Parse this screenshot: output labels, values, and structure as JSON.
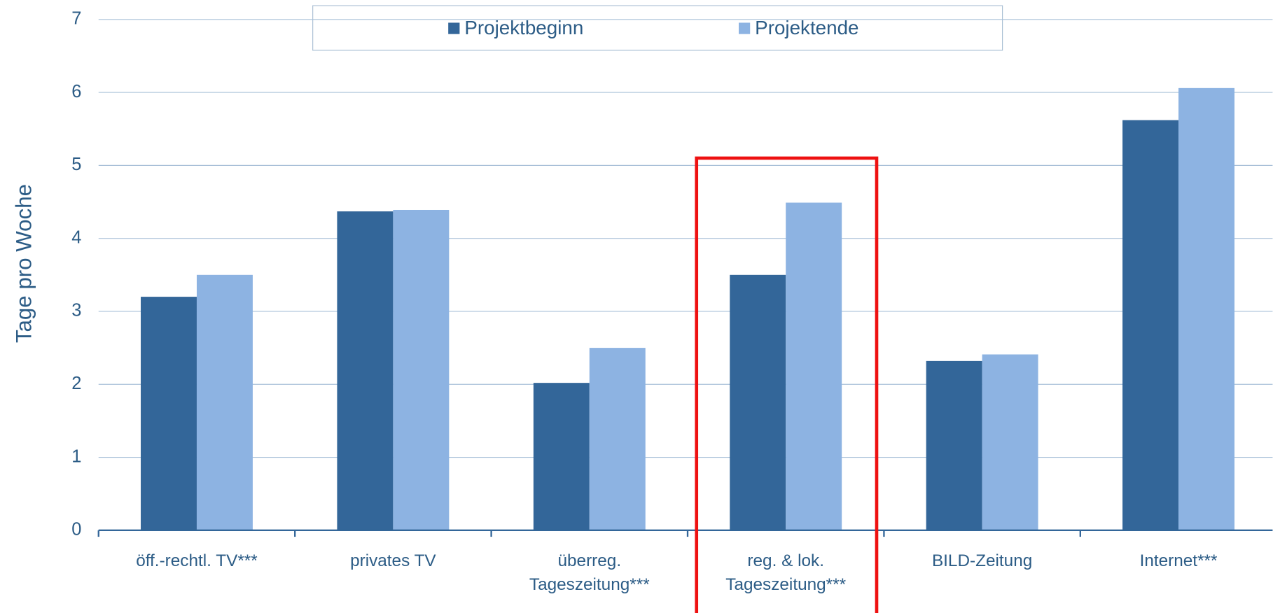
{
  "chart_data": {
    "type": "bar",
    "y_label": "Tage pro Woche",
    "categories": [
      "öff.-rechtl. TV***",
      "privates TV",
      "überreg.\nTageszeitung***",
      "reg. & lok.\nTageszeitung***",
      "BILD-Zeitung",
      "Internet***"
    ],
    "series": [
      {
        "name": "Projektbeginn",
        "color": "#336699",
        "values": [
          3.2,
          4.37,
          2.02,
          3.5,
          2.32,
          5.62
        ]
      },
      {
        "name": "Projektende",
        "color": "#8db3e2",
        "values": [
          3.5,
          4.39,
          2.5,
          4.49,
          2.41,
          6.06
        ]
      }
    ],
    "ylim": [
      0,
      7
    ],
    "yticks": [
      0,
      1,
      2,
      3,
      4,
      5,
      6,
      7
    ],
    "grid": true,
    "legend": "top"
  }
}
